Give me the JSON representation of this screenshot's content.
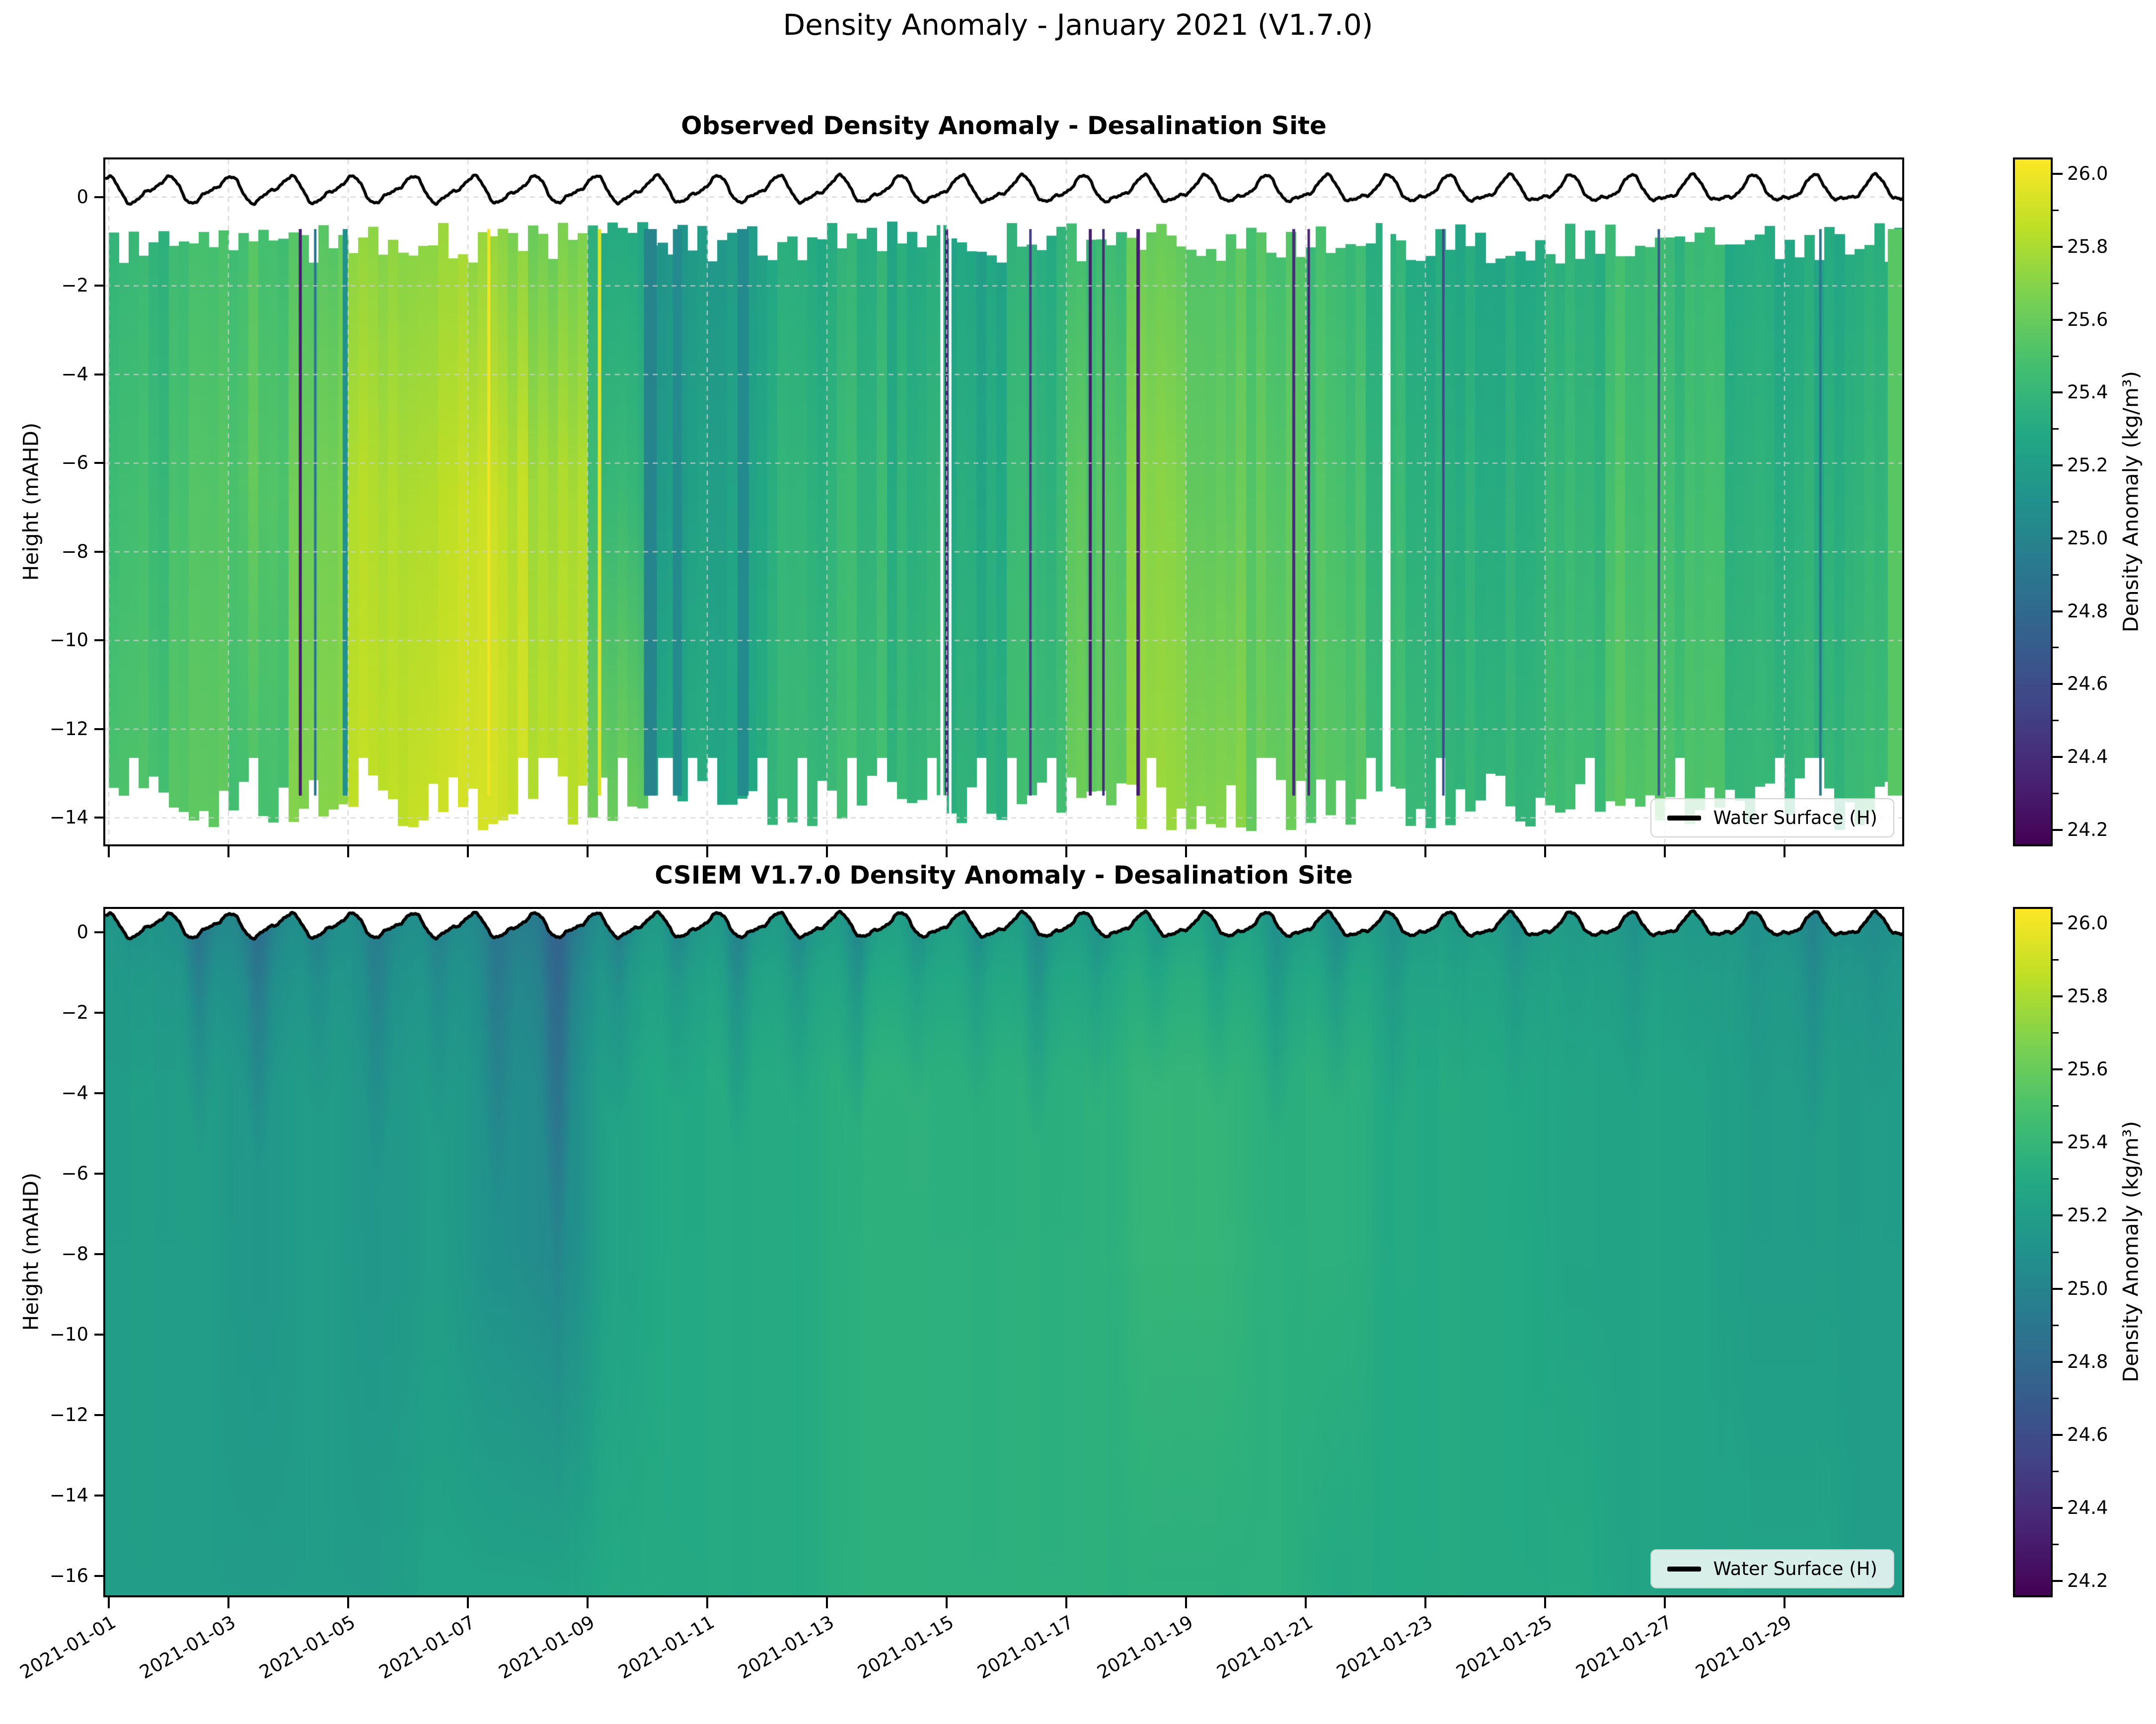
{
  "figure": {
    "title": "Density Anomaly - January 2021 (V1.7.0)",
    "background": "#ffffff"
  },
  "axes": {
    "x": {
      "tick_labels": [
        "2021-01-01",
        "2021-01-03",
        "2021-01-05",
        "2021-01-07",
        "2021-01-09",
        "2021-01-11",
        "2021-01-13",
        "2021-01-15",
        "2021-01-17",
        "2021-01-19",
        "2021-01-21",
        "2021-01-23",
        "2021-01-25",
        "2021-01-27",
        "2021-01-29"
      ],
      "tick_spacing_days": 2,
      "span_days": 30
    },
    "top_plot": {
      "title": "Observed Density Anomaly - Desalination Site",
      "ylabel": "Height (mAHD)",
      "ytick_values": [
        0,
        -2,
        -4,
        -6,
        -8,
        -10,
        -12,
        -14
      ],
      "ytick_labels": [
        "0",
        "−2",
        "−4",
        "−6",
        "−8",
        "−10",
        "−12",
        "−14"
      ],
      "ylim": [
        0.85,
        -14.6
      ],
      "legend_label": "Water Surface (H)"
    },
    "bottom_plot": {
      "title": "CSIEM V1.7.0 Density Anomaly - Desalination Site",
      "ylabel": "Height (mAHD)",
      "ytick_values": [
        0,
        -2,
        -4,
        -6,
        -8,
        -10,
        -12,
        -14,
        -16
      ],
      "ytick_labels": [
        "0",
        "−2",
        "−4",
        "−6",
        "−8",
        "−10",
        "−12",
        "−14",
        "−16"
      ],
      "ylim": [
        0.58,
        -16.48
      ],
      "legend_label": "Water Surface (H)"
    }
  },
  "colorbar": {
    "label": "Density Anomaly (kg/m³)",
    "tick_values": [
      26.0,
      25.8,
      25.6,
      25.4,
      25.2,
      25.0,
      24.8,
      24.6,
      24.4,
      24.2
    ],
    "tick_labels": [
      "26.0",
      "25.8",
      "25.6",
      "25.4",
      "25.2",
      "25.0",
      "24.8",
      "24.6",
      "24.4",
      "24.2"
    ],
    "vmin": 24.16,
    "vmax": 26.04,
    "colormap": "viridis",
    "viridis_stops": [
      "#440154",
      "#482475",
      "#414487",
      "#355f8d",
      "#2a788e",
      "#21918c",
      "#22a884",
      "#44bf70",
      "#7ad151",
      "#bddf26",
      "#fde725"
    ]
  },
  "chart_data": {
    "type": "heatmap",
    "title": "Density Anomaly - January 2021 (V1.7.0)",
    "x_range": [
      "2021-01-01",
      "2021-01-31"
    ],
    "units": "kg/m³",
    "xlabel": "",
    "ylabel": "Height (mAHD)",
    "observed": {
      "title": "Observed Density Anomaly - Desalination Site",
      "depth_levels": [
        -1,
        -7,
        -13.5
      ],
      "top_edge_range": [
        -0.55,
        -1.5
      ],
      "bottom_edge_range": [
        -13.0,
        -14.3
      ],
      "days": [
        [
          25.4,
          25.45,
          25.5
        ],
        [
          25.45,
          25.5,
          25.55
        ],
        [
          25.5,
          25.55,
          25.5
        ],
        [
          25.55,
          25.65,
          25.7
        ],
        [
          25.7,
          25.8,
          25.85
        ],
        [
          25.75,
          25.85,
          25.9
        ],
        [
          25.7,
          25.85,
          25.9
        ],
        [
          25.65,
          25.8,
          25.85
        ],
        [
          25.3,
          25.4,
          25.6
        ],
        [
          25.15,
          25.2,
          25.3
        ],
        [
          25.2,
          25.25,
          25.3
        ],
        [
          25.3,
          25.35,
          25.4
        ],
        [
          25.35,
          25.4,
          25.45
        ],
        [
          25.3,
          25.35,
          25.4
        ],
        [
          25.25,
          25.3,
          25.35
        ],
        [
          25.35,
          25.4,
          25.45
        ],
        [
          25.45,
          25.55,
          25.6
        ],
        [
          25.6,
          25.7,
          25.75
        ],
        [
          25.55,
          25.6,
          25.7
        ],
        [
          25.5,
          25.55,
          25.6
        ],
        [
          25.45,
          25.5,
          25.55
        ],
        [
          25.35,
          25.4,
          25.45
        ],
        [
          25.3,
          25.35,
          25.4
        ],
        [
          25.3,
          25.35,
          25.4
        ],
        [
          25.35,
          25.4,
          25.45
        ],
        [
          25.45,
          25.5,
          25.55
        ],
        [
          25.4,
          25.45,
          25.5
        ],
        [
          25.3,
          25.35,
          25.4
        ],
        [
          25.3,
          25.35,
          25.4
        ],
        [
          25.35,
          25.4,
          25.45
        ]
      ],
      "dark_streaks": [
        {
          "t": 3.2,
          "v": 24.3,
          "w": 6
        },
        {
          "t": 3.45,
          "v": 24.9,
          "w": 5
        },
        {
          "t": 3.95,
          "v": 25.1,
          "w": 10
        },
        {
          "t": 6.35,
          "v": 26.0,
          "w": 6
        },
        {
          "t": 8.2,
          "v": 25.95,
          "w": 7
        },
        {
          "t": 9.0,
          "v": 24.8,
          "w": 5
        },
        {
          "t": 9.05,
          "v": 25.0,
          "w": 26
        },
        {
          "t": 9.5,
          "v": 25.05,
          "w": 18
        },
        {
          "t": 10.6,
          "v": 25.05,
          "w": 22
        },
        {
          "t": 14.0,
          "v": 24.35,
          "w": 6
        },
        {
          "t": 15.4,
          "v": 24.5,
          "w": 5
        },
        {
          "t": 16.4,
          "v": 24.3,
          "w": 6
        },
        {
          "t": 16.62,
          "v": 24.4,
          "w": 5
        },
        {
          "t": 17.2,
          "v": 24.3,
          "w": 7
        },
        {
          "t": 19.8,
          "v": 24.4,
          "w": 6
        },
        {
          "t": 20.05,
          "v": 24.35,
          "w": 5
        },
        {
          "t": 22.3,
          "v": 24.6,
          "w": 5
        },
        {
          "t": 25.9,
          "v": 24.7,
          "w": 5
        },
        {
          "t": 28.6,
          "v": 24.9,
          "w": 5
        },
        {
          "t": 29.85,
          "v": 25.55,
          "w": 30
        }
      ],
      "white_gaps": [
        {
          "t": 21.35,
          "w": 16
        },
        {
          "t": 13.92,
          "w": 6
        },
        {
          "t": 14.06,
          "w": 5
        }
      ]
    },
    "model": {
      "title": "CSIEM V1.7.0 Density Anomaly - Desalination Site",
      "depth_levels": [
        0,
        -6,
        -16
      ],
      "day_format": [
        "surface_value",
        "mid_value",
        "deep_value",
        "plume_depth_m"
      ],
      "days": [
        [
          25.1,
          25.2,
          25.2,
          1.5
        ],
        [
          24.9,
          25.2,
          25.2,
          3.0
        ],
        [
          24.85,
          25.15,
          25.2,
          3.5
        ],
        [
          25.0,
          25.2,
          25.2,
          2.0
        ],
        [
          24.95,
          25.15,
          25.2,
          4.0
        ],
        [
          25.0,
          25.2,
          25.25,
          3.0
        ],
        [
          24.9,
          25.1,
          25.25,
          5.0
        ],
        [
          24.75,
          25.05,
          25.25,
          7.0
        ],
        [
          25.0,
          25.25,
          25.3,
          2.5
        ],
        [
          25.05,
          25.3,
          25.3,
          2.0
        ],
        [
          25.0,
          25.3,
          25.3,
          3.0
        ],
        [
          25.05,
          25.3,
          25.3,
          2.0
        ],
        [
          25.05,
          25.35,
          25.35,
          2.5
        ],
        [
          25.1,
          25.35,
          25.35,
          2.0
        ],
        [
          25.1,
          25.35,
          25.35,
          2.0
        ],
        [
          25.05,
          25.35,
          25.35,
          3.0
        ],
        [
          25.1,
          25.35,
          25.35,
          2.0
        ],
        [
          25.15,
          25.4,
          25.35,
          1.5
        ],
        [
          25.15,
          25.4,
          25.35,
          2.0
        ],
        [
          25.1,
          25.35,
          25.35,
          3.0
        ],
        [
          25.05,
          25.35,
          25.3,
          2.0
        ],
        [
          25.1,
          25.3,
          25.3,
          2.5
        ],
        [
          25.15,
          25.3,
          25.3,
          1.5
        ],
        [
          25.1,
          25.3,
          25.3,
          2.0
        ],
        [
          25.15,
          25.25,
          25.3,
          1.5
        ],
        [
          25.1,
          25.25,
          25.25,
          2.0
        ],
        [
          25.15,
          25.25,
          25.25,
          1.5
        ],
        [
          25.1,
          25.2,
          25.25,
          2.0
        ],
        [
          25.0,
          25.2,
          25.25,
          3.0
        ],
        [
          25.05,
          25.2,
          25.2,
          2.0
        ]
      ]
    },
    "water_surface": {
      "label": "Water Surface (H)",
      "color": "#000000",
      "mean": 0.16,
      "components": [
        {
          "amp": 0.26,
          "period_days": 1.02,
          "phase": 2.0
        },
        {
          "amp": 0.09,
          "period_days": 0.508,
          "phase": 0.8
        },
        {
          "amp": 0.02,
          "period_days": 0.19,
          "phase": 0.0
        }
      ]
    }
  }
}
